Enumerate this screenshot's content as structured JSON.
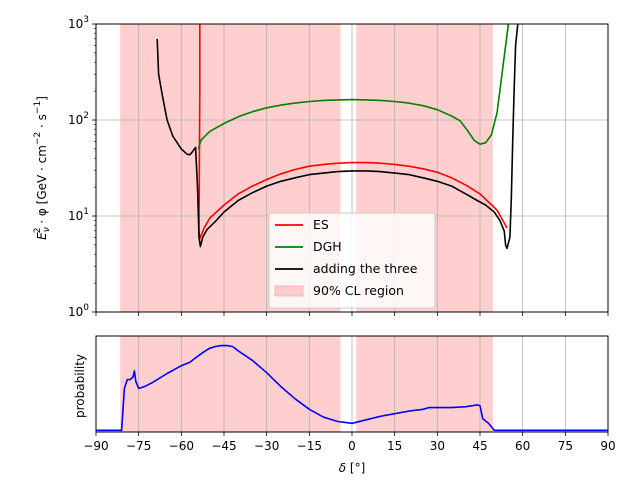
{
  "chart_data": [
    {
      "type": "line",
      "yscale": "log",
      "xlim": [
        -90,
        90
      ],
      "ylim": [
        1,
        1000
      ],
      "xlabel": "",
      "ylabel": "E_ν² · φ [GeV · cm⁻² · s⁻¹]",
      "ylabel_parts": {
        "a": "E",
        "sub": "ν",
        "sup": "2",
        "b": " · φ [GeV · cm",
        "e1": "−2",
        "c": " · s",
        "e2": "−1",
        "d": "]"
      },
      "grid": true,
      "x_ticks": [
        -90,
        -75,
        -60,
        -45,
        -30,
        -15,
        0,
        15,
        30,
        45,
        60,
        75,
        90
      ],
      "y_ticks": [
        {
          "value": 1,
          "label_base": "10",
          "label_exp": "0"
        },
        {
          "value": 10,
          "label_base": "10",
          "label_exp": "1"
        },
        {
          "value": 100,
          "label_base": "10",
          "label_exp": "2"
        },
        {
          "value": 1000,
          "label_base": "10",
          "label_exp": "3"
        }
      ],
      "cl_regions": [
        [
          -81.5,
          -4
        ],
        [
          1.5,
          49.5
        ]
      ],
      "legend_position": "lower center",
      "legend": [
        {
          "label": "ES",
          "color": "#ff0000",
          "kind": "line"
        },
        {
          "label": "DGH",
          "color": "#008000",
          "kind": "line"
        },
        {
          "label": "adding the three",
          "color": "#000000",
          "kind": "line"
        },
        {
          "label": "90% CL region",
          "color": "#ffcccc",
          "kind": "patch"
        }
      ],
      "series": [
        {
          "name": "ES",
          "color": "#ff0000",
          "points": [
            [
              -53.5,
              1000
            ],
            [
              -53.5,
              200
            ],
            [
              -53.8,
              7
            ],
            [
              -53.5,
              5.8
            ],
            [
              -52,
              7.5
            ],
            [
              -50,
              9.5
            ],
            [
              -45,
              13
            ],
            [
              -40,
              17
            ],
            [
              -35,
              20.5
            ],
            [
              -30,
              24
            ],
            [
              -25,
              27.5
            ],
            [
              -20,
              30.5
            ],
            [
              -15,
              33
            ],
            [
              -10,
              34.5
            ],
            [
              -5,
              35.5
            ],
            [
              0,
              36
            ],
            [
              5,
              36
            ],
            [
              10,
              35.5
            ],
            [
              15,
              34.5
            ],
            [
              20,
              33
            ],
            [
              25,
              31
            ],
            [
              30,
              28.5
            ],
            [
              35,
              25
            ],
            [
              40,
              21
            ],
            [
              45,
              17
            ],
            [
              48,
              14
            ],
            [
              51,
              11.5
            ],
            [
              53,
              9
            ],
            [
              54.5,
              7.5
            ]
          ]
        },
        {
          "name": "DGH",
          "color": "#008000",
          "points": [
            [
              -54,
              50
            ],
            [
              -53,
              62
            ],
            [
              -50,
              76
            ],
            [
              -45,
              92
            ],
            [
              -40,
              108
            ],
            [
              -35,
              122
            ],
            [
              -30,
              134
            ],
            [
              -25,
              143
            ],
            [
              -20,
              150
            ],
            [
              -15,
              156
            ],
            [
              -10,
              160
            ],
            [
              -5,
              162
            ],
            [
              0,
              163
            ],
            [
              5,
              162
            ],
            [
              10,
              160
            ],
            [
              15,
              156
            ],
            [
              20,
              150
            ],
            [
              25,
              141
            ],
            [
              30,
              128
            ],
            [
              35,
              110
            ],
            [
              38,
              98
            ],
            [
              41,
              75
            ],
            [
              43,
              61
            ],
            [
              45,
              56
            ],
            [
              47,
              58
            ],
            [
              49,
              70
            ],
            [
              51,
              120
            ],
            [
              53,
              350
            ],
            [
              55,
              1000
            ]
          ]
        },
        {
          "name": "adding the three",
          "color": "#000000",
          "points": [
            [
              -68.5,
              700
            ],
            [
              -68,
              300
            ],
            [
              -66.5,
              170
            ],
            [
              -65,
              100
            ],
            [
              -63,
              68
            ],
            [
              -60,
              50
            ],
            [
              -58,
              44
            ],
            [
              -57,
              43.5
            ],
            [
              -56,
              47
            ],
            [
              -55,
              52
            ],
            [
              -54.3,
              20
            ],
            [
              -53.8,
              6
            ],
            [
              -53.3,
              4.8
            ],
            [
              -52.5,
              6
            ],
            [
              -51,
              7.2
            ],
            [
              -48,
              8.8
            ],
            [
              -45,
              11
            ],
            [
              -40,
              14.5
            ],
            [
              -35,
              17.5
            ],
            [
              -30,
              20.5
            ],
            [
              -25,
              23
            ],
            [
              -20,
              25
            ],
            [
              -15,
              27
            ],
            [
              -10,
              28
            ],
            [
              -5,
              29
            ],
            [
              0,
              29.5
            ],
            [
              5,
              29.5
            ],
            [
              10,
              29
            ],
            [
              15,
              28
            ],
            [
              20,
              27
            ],
            [
              25,
              25
            ],
            [
              30,
              23
            ],
            [
              35,
              20.5
            ],
            [
              40,
              17
            ],
            [
              44,
              14.5
            ],
            [
              47,
              13
            ],
            [
              50,
              11
            ],
            [
              52,
              9
            ],
            [
              53.5,
              7
            ],
            [
              54,
              5
            ],
            [
              54.5,
              4.6
            ],
            [
              55.5,
              6
            ],
            [
              56,
              15
            ],
            [
              56.5,
              60
            ],
            [
              57,
              200
            ],
            [
              57.5,
              600
            ],
            [
              58.3,
              1000
            ]
          ]
        }
      ]
    },
    {
      "type": "line",
      "xlim": [
        -90,
        90
      ],
      "ylim": [
        0,
        1.1
      ],
      "xlabel": "δ [°]",
      "xlabel_parts": {
        "sym": "δ",
        "unit": " [°]"
      },
      "ylabel": "probability",
      "grid": true,
      "x_ticks": [
        -90,
        -75,
        -60,
        -45,
        -30,
        -15,
        0,
        15,
        30,
        45,
        60,
        75,
        90
      ],
      "cl_regions": [
        [
          -81.5,
          -4
        ],
        [
          1.5,
          49.5
        ]
      ],
      "series": [
        {
          "name": "",
          "color": "#0000ff",
          "points": [
            [
              -90,
              0.02
            ],
            [
              -81,
              0.02
            ],
            [
              -80,
              0.5
            ],
            [
              -79,
              0.6
            ],
            [
              -78,
              0.6
            ],
            [
              -77,
              0.63
            ],
            [
              -76.5,
              0.7
            ],
            [
              -76,
              0.58
            ],
            [
              -75,
              0.5
            ],
            [
              -73,
              0.52
            ],
            [
              -70,
              0.57
            ],
            [
              -65,
              0.67
            ],
            [
              -60,
              0.76
            ],
            [
              -57,
              0.8
            ],
            [
              -55,
              0.85
            ],
            [
              -52,
              0.92
            ],
            [
              -50,
              0.96
            ],
            [
              -48,
              0.98
            ],
            [
              -46,
              0.99
            ],
            [
              -44,
              0.99
            ],
            [
              -42,
              0.98
            ],
            [
              -40,
              0.93
            ],
            [
              -35,
              0.82
            ],
            [
              -30,
              0.68
            ],
            [
              -25,
              0.52
            ],
            [
              -20,
              0.38
            ],
            [
              -15,
              0.26
            ],
            [
              -10,
              0.17
            ],
            [
              -5,
              0.12
            ],
            [
              0,
              0.1
            ],
            [
              5,
              0.14
            ],
            [
              10,
              0.18
            ],
            [
              15,
              0.21
            ],
            [
              20,
              0.24
            ],
            [
              25,
              0.26
            ],
            [
              27,
              0.28
            ],
            [
              30,
              0.28
            ],
            [
              35,
              0.28
            ],
            [
              40,
              0.29
            ],
            [
              44,
              0.31
            ],
            [
              45,
              0.3
            ],
            [
              46,
              0.15
            ],
            [
              48,
              0.1
            ],
            [
              50,
              0.02
            ],
            [
              90,
              0.02
            ]
          ]
        }
      ]
    }
  ]
}
